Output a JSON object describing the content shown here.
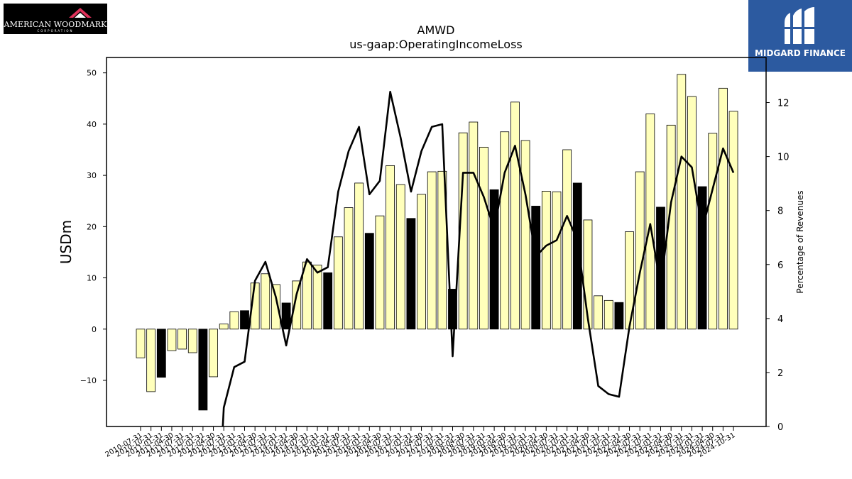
{
  "brand_left": {
    "name": "AMERICAN WOODMARK",
    "sub": "CORPORATION"
  },
  "brand_right": {
    "name": "MIDGARD FINANCE"
  },
  "chart_data": {
    "type": "bar",
    "title": "AMWD",
    "subtitle": "us-gaap:OperatingIncomeLoss",
    "ylabel": "USDm",
    "y2label": "Percentage of Revenues",
    "ylim": [
      -19,
      53
    ],
    "y2lim": [
      0,
      13.67
    ],
    "yticks": [
      -10,
      0,
      10,
      20,
      30,
      40,
      50
    ],
    "y2ticks": [
      0,
      2,
      4,
      6,
      8,
      10,
      12
    ],
    "colors": {
      "bar": "#ffffbb",
      "bar_q4": "#000000",
      "line": "#000000",
      "edge": "#000000"
    },
    "categories": [
      "2010-07-31",
      "2010-10-31",
      "2011-01-31",
      "2011-04-30",
      "2011-07-31",
      "2011-10-31",
      "2012-01-31",
      "2012-04-30",
      "2012-07-31",
      "2012-10-31",
      "2013-01-31",
      "2013-04-30",
      "2013-07-31",
      "2013-10-31",
      "2014-01-31",
      "2014-04-30",
      "2014-07-31",
      "2014-10-31",
      "2015-01-31",
      "2015-04-30",
      "2015-07-31",
      "2015-10-31",
      "2016-01-31",
      "2016-04-30",
      "2016-07-31",
      "2016-10-31",
      "2017-01-31",
      "2017-04-30",
      "2017-07-31",
      "2017-10-31",
      "2018-01-31",
      "2018-04-30",
      "2018-07-31",
      "2018-10-31",
      "2019-01-31",
      "2019-04-30",
      "2019-07-31",
      "2019-10-31",
      "2020-01-31",
      "2020-04-30",
      "2020-07-31",
      "2020-10-31",
      "2021-01-31",
      "2021-04-30",
      "2021-07-31",
      "2021-10-31",
      "2022-01-31",
      "2022-04-30",
      "2022-07-31",
      "2022-10-31",
      "2023-01-31",
      "2023-04-30",
      "2023-07-31",
      "2023-10-31",
      "2024-01-31",
      "2024-04-30",
      "2024-07-31",
      "2024-10-31"
    ],
    "series": [
      {
        "kind": "bar",
        "values": [
          -5.6,
          -12.2,
          -9.4,
          -4.2,
          -3.9,
          -4.6,
          -15.8,
          -9.3,
          1.0,
          3.4,
          3.6,
          9.0,
          10.8,
          8.7,
          5.1,
          9.4,
          13.1,
          12.5,
          11.0,
          18.0,
          23.7,
          28.5,
          18.7,
          22.1,
          31.9,
          28.2,
          21.6,
          26.3,
          30.7,
          30.8,
          7.8,
          38.3,
          40.4,
          35.5,
          27.2,
          38.5,
          44.3,
          36.8,
          24.0,
          26.9,
          26.8,
          35.0,
          28.5,
          21.3,
          6.5,
          5.6,
          5.2,
          19.0,
          30.7,
          42.0,
          23.8,
          39.8,
          49.7,
          45.4,
          27.8,
          38.2,
          47.0,
          42.5
        ],
        "q4": [
          false,
          false,
          true,
          false,
          false,
          false,
          true,
          false,
          false,
          false,
          true,
          false,
          false,
          false,
          true,
          false,
          false,
          false,
          true,
          false,
          false,
          false,
          true,
          false,
          false,
          false,
          true,
          false,
          false,
          false,
          true,
          false,
          false,
          false,
          true,
          false,
          false,
          false,
          true,
          false,
          false,
          false,
          true,
          false,
          false,
          false,
          true,
          false,
          false,
          false,
          true,
          false,
          false,
          false,
          true,
          false,
          false,
          false
        ]
      },
      {
        "kind": "line",
        "axis": "right",
        "values": [
          null,
          null,
          null,
          null,
          null,
          null,
          null,
          null,
          0.7,
          2.2,
          2.4,
          5.4,
          6.1,
          4.8,
          3.0,
          4.9,
          6.2,
          5.7,
          5.9,
          8.7,
          10.2,
          11.1,
          8.6,
          9.1,
          12.4,
          10.7,
          8.7,
          10.2,
          11.1,
          11.2,
          2.6,
          9.4,
          9.4,
          8.5,
          7.3,
          9.4,
          10.4,
          8.6,
          6.3,
          6.7,
          6.9,
          7.8,
          6.9,
          4.0,
          1.5,
          1.2,
          1.1,
          3.7,
          5.7,
          7.5,
          5.2,
          8.3,
          10.0,
          9.6,
          7.3,
          8.8,
          10.3,
          9.4
        ]
      }
    ]
  }
}
